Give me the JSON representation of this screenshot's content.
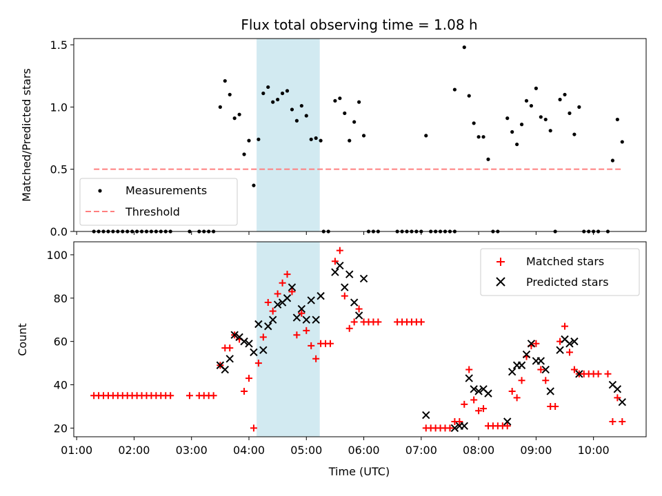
{
  "chart_data": [
    {
      "type": "scatter",
      "title": "Flux total observing time = 1.08 h",
      "ylabel": "Matched/Predicted stars",
      "xlabel": "",
      "ylim": [
        0,
        1.55
      ],
      "yticks": [
        "0.0",
        "0.5",
        "1.0",
        "1.5"
      ],
      "grid": false,
      "legend_position": "lower-left",
      "highlight_span": [
        "04:08",
        "05:14"
      ],
      "highlight_color": "#add8e6",
      "threshold": {
        "name": "Threshold",
        "value": 0.5,
        "x_range": [
          "01:18",
          "10:30"
        ],
        "color": "#ff7f7f"
      },
      "series": [
        {
          "name": "Measurements",
          "color": "#000000",
          "points": [
            [
              "01:18",
              0
            ],
            [
              "01:23",
              0
            ],
            [
              "01:28",
              0
            ],
            [
              "01:33",
              0
            ],
            [
              "01:38",
              0
            ],
            [
              "01:43",
              0
            ],
            [
              "01:48",
              0
            ],
            [
              "01:53",
              0
            ],
            [
              "01:58",
              0
            ],
            [
              "02:03",
              0
            ],
            [
              "02:08",
              0
            ],
            [
              "02:13",
              0
            ],
            [
              "02:18",
              0
            ],
            [
              "02:23",
              0
            ],
            [
              "02:28",
              0
            ],
            [
              "02:33",
              0
            ],
            [
              "02:38",
              0
            ],
            [
              "02:58",
              0
            ],
            [
              "03:08",
              0
            ],
            [
              "03:13",
              0
            ],
            [
              "03:18",
              0
            ],
            [
              "03:23",
              0
            ],
            [
              "03:30",
              1.0
            ],
            [
              "03:35",
              1.21
            ],
            [
              "03:40",
              1.1
            ],
            [
              "03:45",
              0.91
            ],
            [
              "03:50",
              0.94
            ],
            [
              "03:55",
              0.62
            ],
            [
              "04:00",
              0.73
            ],
            [
              "04:05",
              0.37
            ],
            [
              "04:10",
              0.74
            ],
            [
              "04:15",
              1.11
            ],
            [
              "04:20",
              1.16
            ],
            [
              "04:25",
              1.04
            ],
            [
              "04:30",
              1.06
            ],
            [
              "04:35",
              1.11
            ],
            [
              "04:40",
              1.13
            ],
            [
              "04:45",
              0.98
            ],
            [
              "04:50",
              0.89
            ],
            [
              "04:55",
              1.01
            ],
            [
              "05:00",
              0.93
            ],
            [
              "05:05",
              0.74
            ],
            [
              "05:10",
              0.75
            ],
            [
              "05:15",
              0.73
            ],
            [
              "05:18",
              0
            ],
            [
              "05:23",
              0
            ],
            [
              "05:30",
              1.05
            ],
            [
              "05:35",
              1.07
            ],
            [
              "05:40",
              0.95
            ],
            [
              "05:45",
              0.73
            ],
            [
              "05:50",
              0.88
            ],
            [
              "05:55",
              1.04
            ],
            [
              "06:00",
              0.77
            ],
            [
              "06:05",
              0
            ],
            [
              "06:10",
              0
            ],
            [
              "06:15",
              0
            ],
            [
              "06:35",
              0
            ],
            [
              "06:40",
              0
            ],
            [
              "06:45",
              0
            ],
            [
              "06:50",
              0
            ],
            [
              "06:55",
              0
            ],
            [
              "07:00",
              0
            ],
            [
              "07:05",
              0.77
            ],
            [
              "07:10",
              0
            ],
            [
              "07:15",
              0
            ],
            [
              "07:20",
              0
            ],
            [
              "07:25",
              0
            ],
            [
              "07:30",
              0
            ],
            [
              "07:35",
              0
            ],
            [
              "07:35",
              1.14
            ],
            [
              "07:45",
              1.48
            ],
            [
              "07:50",
              1.09
            ],
            [
              "07:55",
              0.87
            ],
            [
              "08:00",
              0.76
            ],
            [
              "08:05",
              0.76
            ],
            [
              "08:10",
              0.58
            ],
            [
              "08:15",
              0
            ],
            [
              "08:20",
              0
            ],
            [
              "08:30",
              0.91
            ],
            [
              "08:35",
              0.8
            ],
            [
              "08:40",
              0.7
            ],
            [
              "08:45",
              0.86
            ],
            [
              "08:50",
              1.05
            ],
            [
              "08:55",
              1.01
            ],
            [
              "09:00",
              1.15
            ],
            [
              "09:05",
              0.92
            ],
            [
              "09:10",
              0.9
            ],
            [
              "09:15",
              0.81
            ],
            [
              "09:20",
              0
            ],
            [
              "09:25",
              1.06
            ],
            [
              "09:30",
              1.1
            ],
            [
              "09:35",
              0.95
            ],
            [
              "09:40",
              0.78
            ],
            [
              "09:45",
              1.0
            ],
            [
              "09:50",
              0
            ],
            [
              "09:55",
              0
            ],
            [
              "10:00",
              0
            ],
            [
              "10:05",
              0
            ],
            [
              "10:15",
              0
            ],
            [
              "10:20",
              0.57
            ],
            [
              "10:25",
              0.9
            ],
            [
              "10:30",
              0.72
            ]
          ]
        }
      ]
    },
    {
      "type": "scatter",
      "title": "",
      "xlabel": "Time (UTC)",
      "ylabel": "Count",
      "xlim": [
        "00:57",
        "10:55"
      ],
      "ylim": [
        16,
        106
      ],
      "xticks": [
        "01:00",
        "02:00",
        "03:00",
        "04:00",
        "05:00",
        "06:00",
        "07:00",
        "08:00",
        "09:00",
        "10:00"
      ],
      "yticks": [
        "20",
        "40",
        "60",
        "80",
        "100"
      ],
      "grid": false,
      "legend_position": "upper-right",
      "highlight_span": [
        "04:08",
        "05:14"
      ],
      "series": [
        {
          "name": "Matched stars",
          "color": "#ff0000",
          "points": [
            [
              "01:18",
              35
            ],
            [
              "01:23",
              35
            ],
            [
              "01:28",
              35
            ],
            [
              "01:33",
              35
            ],
            [
              "01:38",
              35
            ],
            [
              "01:43",
              35
            ],
            [
              "01:48",
              35
            ],
            [
              "01:53",
              35
            ],
            [
              "01:58",
              35
            ],
            [
              "02:03",
              35
            ],
            [
              "02:08",
              35
            ],
            [
              "02:13",
              35
            ],
            [
              "02:18",
              35
            ],
            [
              "02:23",
              35
            ],
            [
              "02:28",
              35
            ],
            [
              "02:33",
              35
            ],
            [
              "02:38",
              35
            ],
            [
              "02:58",
              35
            ],
            [
              "03:08",
              35
            ],
            [
              "03:13",
              35
            ],
            [
              "03:18",
              35
            ],
            [
              "03:23",
              35
            ],
            [
              "03:30",
              49
            ],
            [
              "03:35",
              57
            ],
            [
              "03:40",
              57
            ],
            [
              "03:45",
              63
            ],
            [
              "03:50",
              61
            ],
            [
              "03:55",
              37
            ],
            [
              "04:00",
              43
            ],
            [
              "04:05",
              20
            ],
            [
              "04:10",
              50
            ],
            [
              "04:15",
              62
            ],
            [
              "04:20",
              78
            ],
            [
              "04:25",
              74
            ],
            [
              "04:30",
              82
            ],
            [
              "04:35",
              87
            ],
            [
              "04:40",
              91
            ],
            [
              "04:45",
              83
            ],
            [
              "04:50",
              63
            ],
            [
              "04:55",
              73
            ],
            [
              "05:00",
              65
            ],
            [
              "05:05",
              58
            ],
            [
              "05:10",
              52
            ],
            [
              "05:15",
              59
            ],
            [
              "05:20",
              59
            ],
            [
              "05:25",
              59
            ],
            [
              "05:30",
              97
            ],
            [
              "05:35",
              102
            ],
            [
              "05:40",
              81
            ],
            [
              "05:45",
              66
            ],
            [
              "05:50",
              69
            ],
            [
              "05:55",
              75
            ],
            [
              "06:00",
              69
            ],
            [
              "06:05",
              69
            ],
            [
              "06:10",
              69
            ],
            [
              "06:15",
              69
            ],
            [
              "06:35",
              69
            ],
            [
              "06:40",
              69
            ],
            [
              "06:45",
              69
            ],
            [
              "06:50",
              69
            ],
            [
              "06:55",
              69
            ],
            [
              "07:00",
              69
            ],
            [
              "07:05",
              20
            ],
            [
              "07:10",
              20
            ],
            [
              "07:15",
              20
            ],
            [
              "07:20",
              20
            ],
            [
              "07:25",
              20
            ],
            [
              "07:30",
              20
            ],
            [
              "07:35",
              23
            ],
            [
              "07:40",
              23
            ],
            [
              "07:45",
              31
            ],
            [
              "07:50",
              47
            ],
            [
              "07:55",
              33
            ],
            [
              "08:00",
              28
            ],
            [
              "08:05",
              29
            ],
            [
              "08:10",
              21
            ],
            [
              "08:15",
              21
            ],
            [
              "08:20",
              21
            ],
            [
              "08:25",
              21
            ],
            [
              "08:30",
              21
            ],
            [
              "08:35",
              37
            ],
            [
              "08:40",
              34
            ],
            [
              "08:45",
              42
            ],
            [
              "08:50",
              53
            ],
            [
              "08:55",
              58
            ],
            [
              "09:00",
              59
            ],
            [
              "09:05",
              47
            ],
            [
              "09:10",
              42
            ],
            [
              "09:15",
              30
            ],
            [
              "09:20",
              30
            ],
            [
              "09:25",
              60
            ],
            [
              "09:30",
              67
            ],
            [
              "09:35",
              55
            ],
            [
              "09:40",
              47
            ],
            [
              "09:45",
              45
            ],
            [
              "09:50",
              45
            ],
            [
              "09:55",
              45
            ],
            [
              "10:00",
              45
            ],
            [
              "10:05",
              45
            ],
            [
              "10:15",
              45
            ],
            [
              "10:20",
              23
            ],
            [
              "10:25",
              34
            ],
            [
              "10:30",
              23
            ]
          ]
        },
        {
          "name": "Predicted stars",
          "color": "#000000",
          "points": [
            [
              "03:30",
              49
            ],
            [
              "03:35",
              47
            ],
            [
              "03:40",
              52
            ],
            [
              "03:45",
              63
            ],
            [
              "03:50",
              62
            ],
            [
              "03:55",
              60
            ],
            [
              "04:00",
              59
            ],
            [
              "04:05",
              55
            ],
            [
              "04:10",
              68
            ],
            [
              "04:15",
              56
            ],
            [
              "04:20",
              67
            ],
            [
              "04:25",
              70
            ],
            [
              "04:30",
              77
            ],
            [
              "04:35",
              78
            ],
            [
              "04:40",
              80
            ],
            [
              "04:45",
              85
            ],
            [
              "04:50",
              71
            ],
            [
              "04:55",
              75
            ],
            [
              "05:00",
              70
            ],
            [
              "05:05",
              79
            ],
            [
              "05:10",
              70
            ],
            [
              "05:15",
              81
            ],
            [
              "05:30",
              92
            ],
            [
              "05:35",
              95
            ],
            [
              "05:40",
              85
            ],
            [
              "05:45",
              91
            ],
            [
              "05:50",
              78
            ],
            [
              "05:55",
              72
            ],
            [
              "06:00",
              89
            ],
            [
              "07:05",
              26
            ],
            [
              "07:35",
              20
            ],
            [
              "07:40",
              21
            ],
            [
              "07:45",
              21
            ],
            [
              "07:50",
              43
            ],
            [
              "07:55",
              38
            ],
            [
              "08:00",
              37
            ],
            [
              "08:05",
              38
            ],
            [
              "08:10",
              36
            ],
            [
              "08:30",
              23
            ],
            [
              "08:35",
              46
            ],
            [
              "08:40",
              49
            ],
            [
              "08:45",
              49
            ],
            [
              "08:50",
              54
            ],
            [
              "08:55",
              59
            ],
            [
              "09:00",
              51
            ],
            [
              "09:05",
              51
            ],
            [
              "09:10",
              47
            ],
            [
              "09:15",
              37
            ],
            [
              "09:25",
              56
            ],
            [
              "09:30",
              61
            ],
            [
              "09:35",
              59
            ],
            [
              "09:40",
              60
            ],
            [
              "09:45",
              45
            ],
            [
              "10:20",
              40
            ],
            [
              "10:25",
              38
            ],
            [
              "10:30",
              32
            ]
          ]
        }
      ]
    }
  ]
}
